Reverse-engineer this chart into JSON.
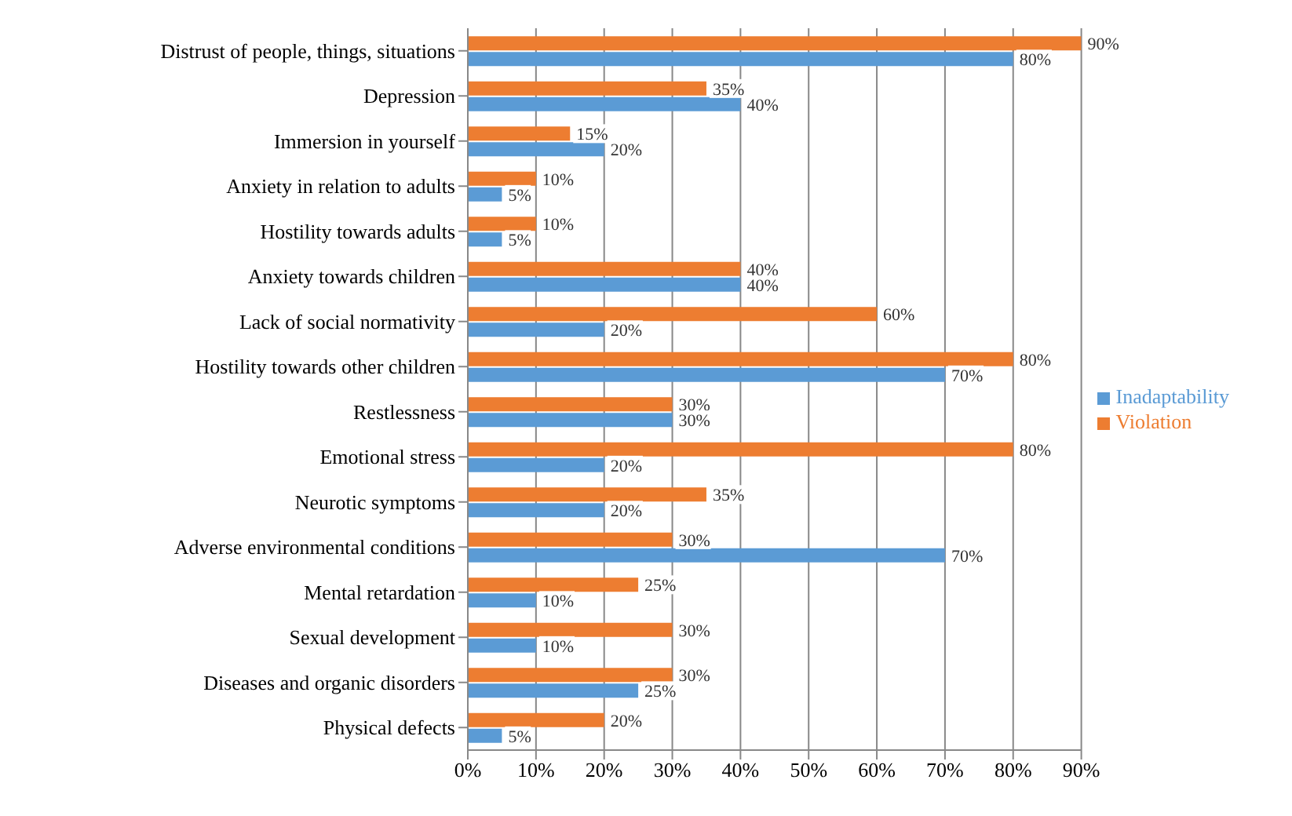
{
  "chart_data": {
    "type": "bar",
    "orientation": "horizontal",
    "categories": [
      "Distrust of people, things, situations",
      "Depression",
      "Immersion in yourself",
      "Anxiety in relation to adults",
      "Hostility towards adults",
      "Anxiety towards children",
      "Lack of social normativity",
      "Hostility towards other children",
      "Restlessness",
      "Emotional stress",
      "Neurotic symptoms",
      "Adverse environmental conditions",
      "Mental retardation",
      "Sexual development",
      "Diseases and organic disorders",
      "Physical defects"
    ],
    "series": [
      {
        "name": "Violation",
        "color": "#ed7d31",
        "values": [
          90,
          35,
          15,
          10,
          10,
          40,
          60,
          80,
          30,
          80,
          35,
          30,
          25,
          30,
          30,
          20
        ],
        "value_labels": [
          "90%",
          "35%",
          "15%",
          "10%",
          "10%",
          "40%",
          "60%",
          "80%",
          "30%",
          "80%",
          "35%",
          "30%",
          "25%",
          "30%",
          "30%",
          "20%"
        ]
      },
      {
        "name": "Inadaptability",
        "color": "#5b9bd5",
        "values": [
          80,
          40,
          20,
          5,
          5,
          40,
          20,
          70,
          30,
          20,
          20,
          70,
          10,
          10,
          25,
          5
        ],
        "value_labels": [
          "80%",
          "40%",
          "20%",
          "5%",
          "5%",
          "40%",
          "20%",
          "70%",
          "30%",
          "20%",
          "20%",
          "70%",
          "10%",
          "10%",
          "25%",
          "5%"
        ]
      }
    ],
    "xlim": [
      0,
      90
    ],
    "xticks": [
      {
        "value": 0,
        "label": "0%"
      },
      {
        "value": 10,
        "label": "10%"
      },
      {
        "value": 20,
        "label": "20%"
      },
      {
        "value": 30,
        "label": "30%"
      },
      {
        "value": 40,
        "label": "40%"
      },
      {
        "value": 50,
        "label": "50%"
      },
      {
        "value": 60,
        "label": "60%"
      },
      {
        "value": 70,
        "label": "70%"
      },
      {
        "value": 80,
        "label": "80%"
      },
      {
        "value": 90,
        "label": "90%"
      }
    ],
    "grid": "x",
    "legend": "right"
  }
}
